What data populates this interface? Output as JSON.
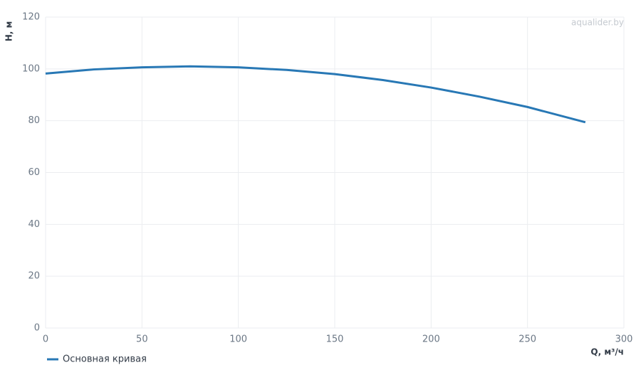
{
  "chart_data": {
    "type": "line",
    "watermark": "aqualider.by",
    "x_label": "Q, м³/ч",
    "y_label": "H, м",
    "x": [
      0,
      25,
      50,
      75,
      100,
      125,
      150,
      175,
      200,
      225,
      250,
      280
    ],
    "series": [
      {
        "name": "Основная кривая",
        "color": "#2878b5",
        "values": [
          98.2,
          99.8,
          100.6,
          101.0,
          100.6,
          99.6,
          98.0,
          95.7,
          92.8,
          89.3,
          85.3,
          79.4
        ]
      }
    ],
    "xlim": [
      0,
      300
    ],
    "xticks": [
      0,
      50,
      100,
      150,
      200,
      250,
      300
    ],
    "ylim": [
      0,
      120
    ],
    "yticks": [
      0,
      20,
      40,
      60,
      80,
      100,
      120
    ],
    "grid": true,
    "legend": "bottom-left"
  }
}
